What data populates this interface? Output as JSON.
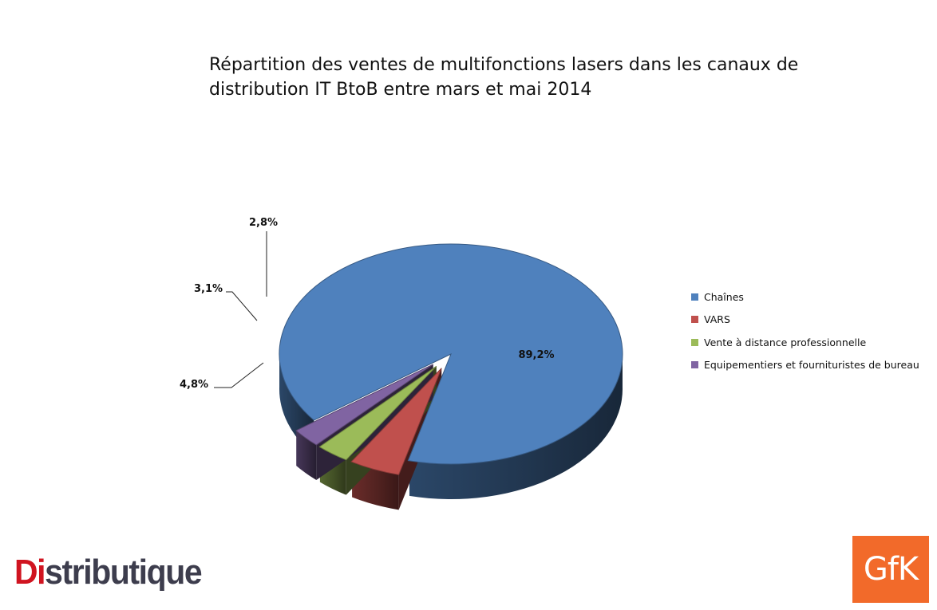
{
  "chart_data": {
    "type": "pie",
    "title": "Répartition des ventes de multifonctions lasers dans les canaux de distribution IT BtoB entre mars et mai 2014",
    "title_lines": [
      "Répartition des ventes de multifonctions lasers dans les canaux de",
      "distribution IT BtoB entre mars et mai 2014"
    ],
    "style": "3d-exploded",
    "legend_position": "right",
    "slices": [
      {
        "name": "Chaînes",
        "value": 89.2,
        "label": "89,2%",
        "color": "#4f81bd"
      },
      {
        "name": "VARS",
        "value": 4.8,
        "label": "4,8%",
        "color": "#c0504d"
      },
      {
        "name": "Vente à distance professionnelle",
        "value": 3.1,
        "label": "3,1%",
        "color": "#9bbb59"
      },
      {
        "name": "Equipementiers et fournituristes de bureau",
        "value": 2.8,
        "label": "2,8%",
        "color": "#8064a2"
      }
    ]
  },
  "logos": {
    "distributique": {
      "part1": "Di",
      "part2": "stributique"
    },
    "gfk": "GfK"
  }
}
